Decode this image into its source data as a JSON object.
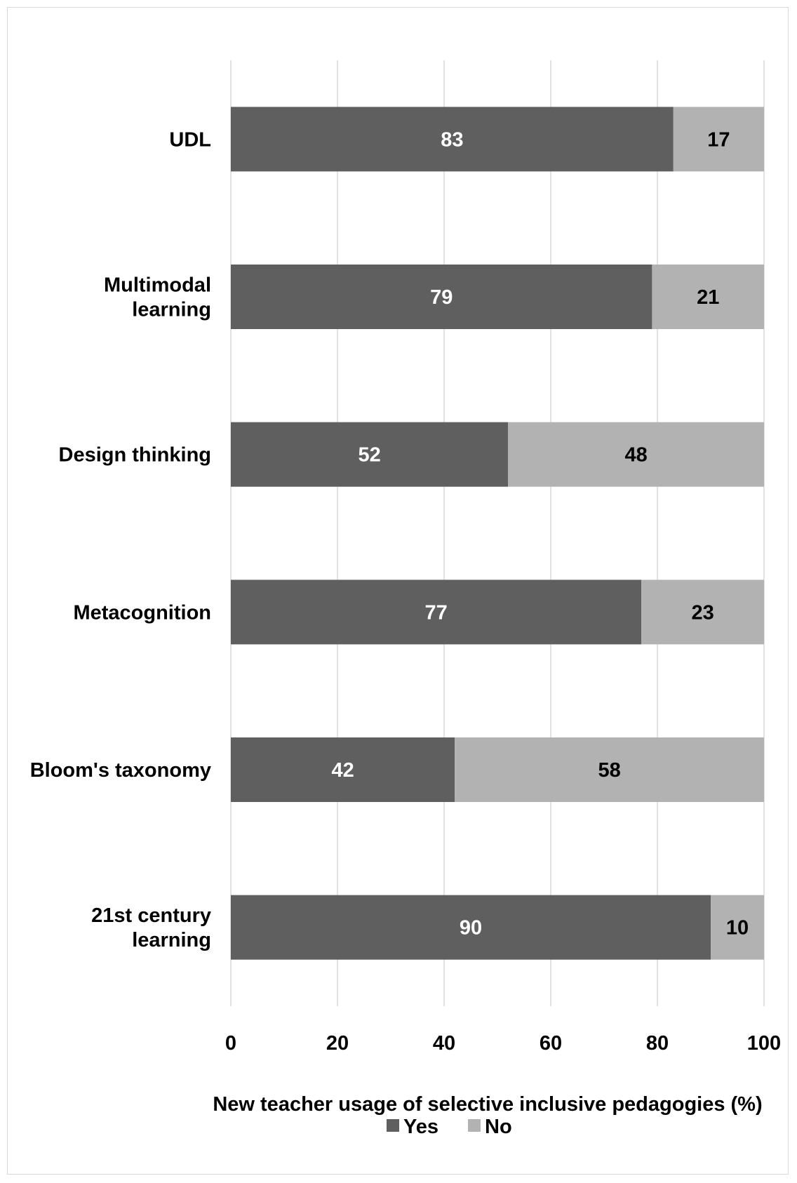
{
  "chart_data": {
    "type": "bar",
    "orientation": "horizontal",
    "stacked": true,
    "categories": [
      "UDL",
      "Multimodal learning",
      "Design thinking",
      "Metacognition",
      "Bloom's taxonomy",
      "21st century learning"
    ],
    "category_lines": [
      [
        "UDL"
      ],
      [
        "Multimodal",
        "learning"
      ],
      [
        "Design thinking"
      ],
      [
        "Metacognition"
      ],
      [
        "Bloom's taxonomy"
      ],
      [
        "21st century",
        "learning"
      ]
    ],
    "series": [
      {
        "name": "Yes",
        "values": [
          83,
          79,
          52,
          77,
          42,
          90
        ],
        "color": "#5f5f5f",
        "label_color": "#ffffff"
      },
      {
        "name": "No",
        "values": [
          17,
          21,
          48,
          23,
          58,
          10
        ],
        "color": "#b2b2b2",
        "label_color": "#000000"
      }
    ],
    "xlabel": "New teacher usage of selective inclusive pedagogies (%)",
    "xlim": [
      0,
      100
    ],
    "xticks": [
      0,
      20,
      40,
      60,
      80,
      100
    ],
    "grid": true,
    "legend_position": "bottom"
  }
}
